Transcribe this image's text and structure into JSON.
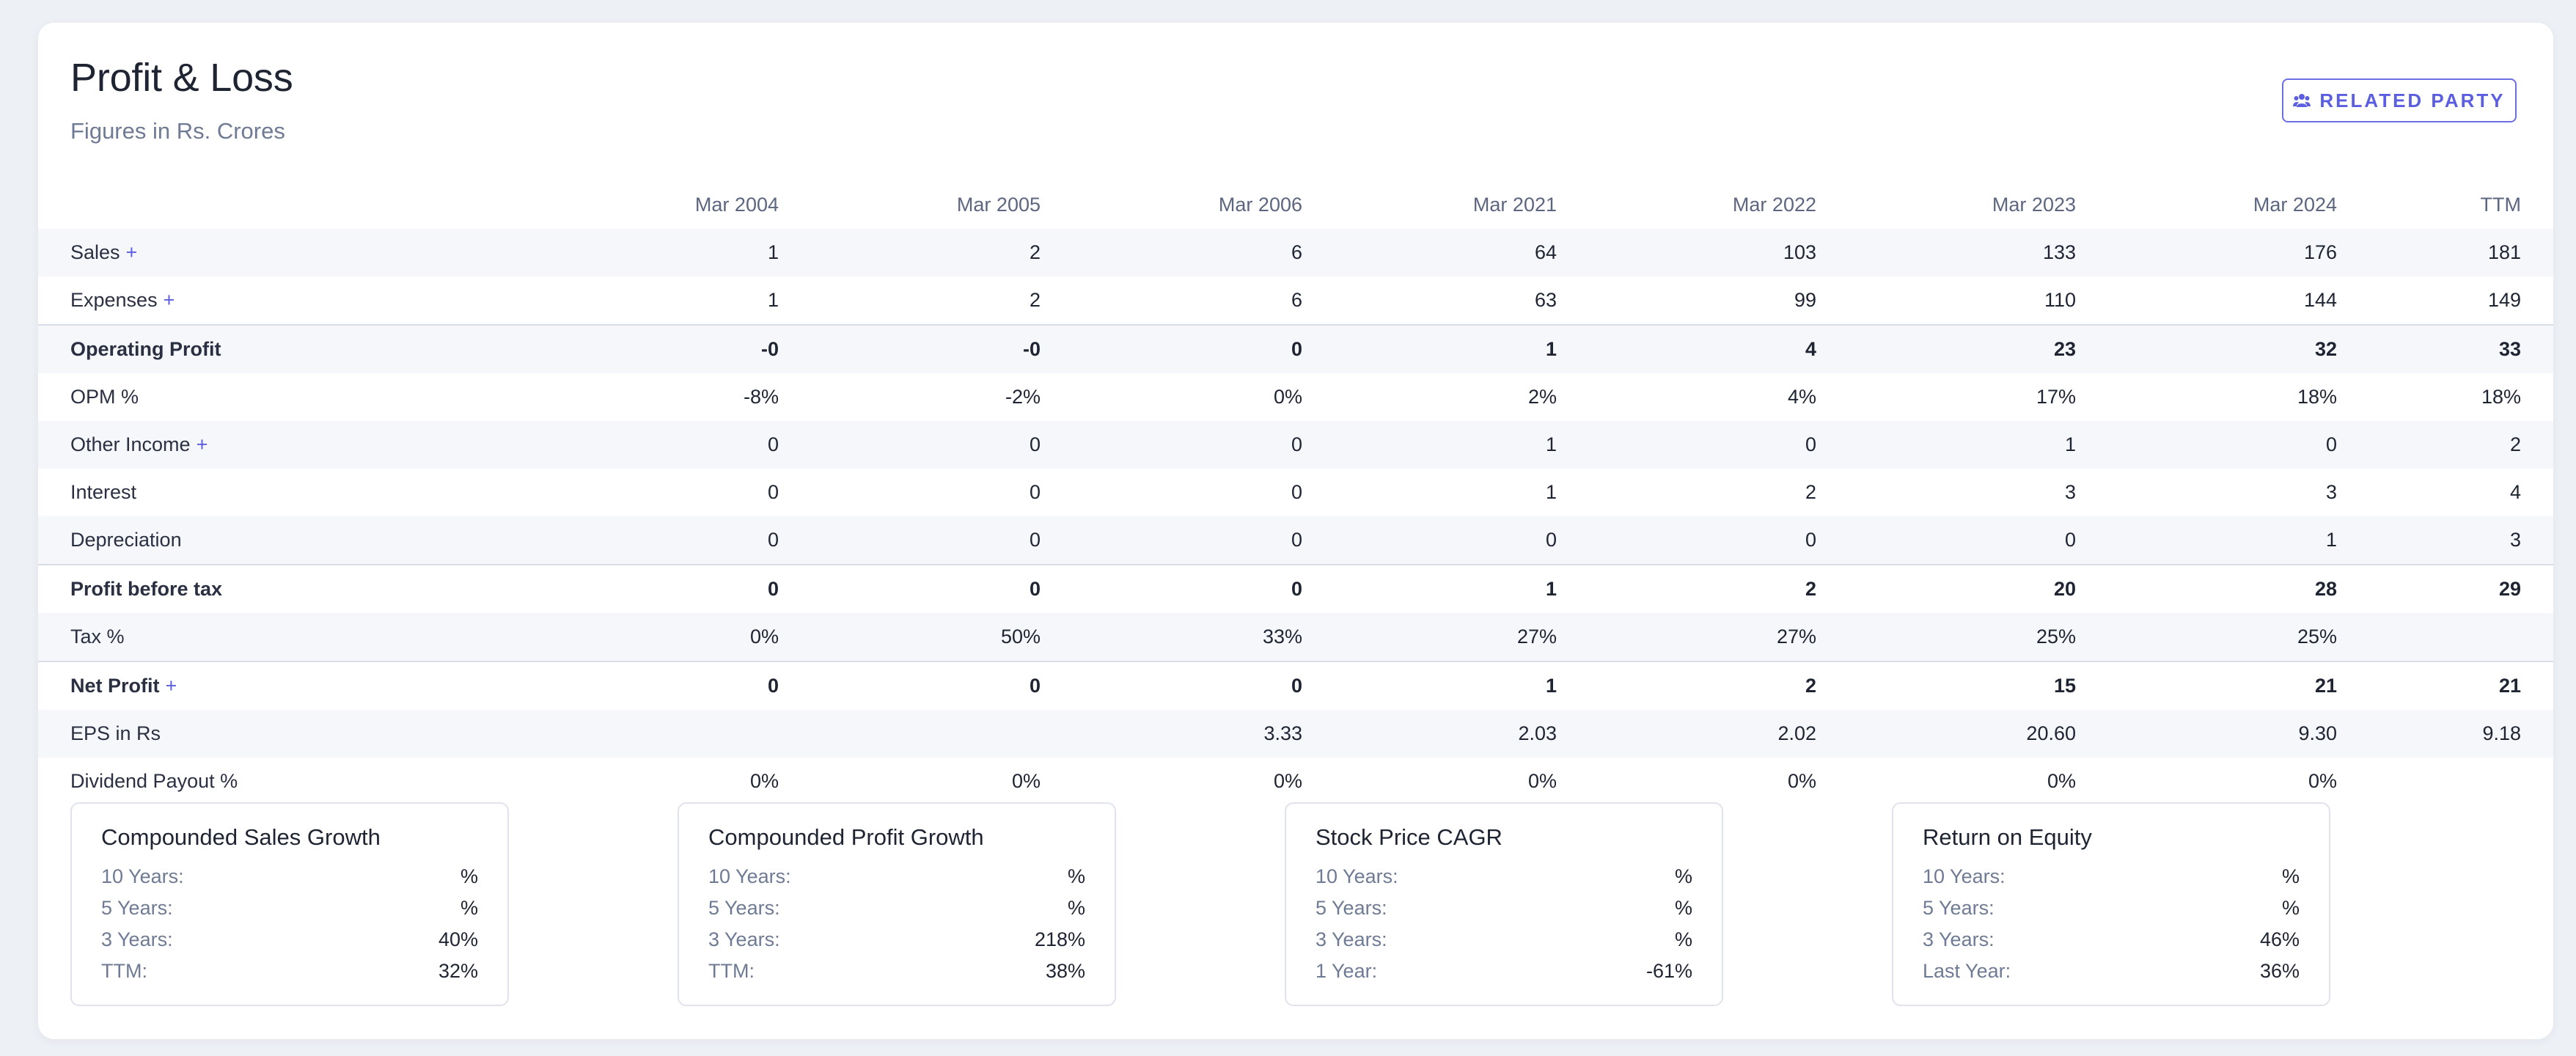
{
  "header": {
    "title": "Profit & Loss",
    "subtitle": "Figures in Rs. Crores",
    "related_party_label": "RELATED PARTY",
    "related_party_icon": "users-icon"
  },
  "colors": {
    "accent": "#5b5ee0",
    "background": "#edf0f5",
    "row_alt": "#f6f7fb"
  },
  "table": {
    "columns": [
      "Mar 2004",
      "Mar 2005",
      "Mar 2006",
      "Mar 2021",
      "Mar 2022",
      "Mar 2023",
      "Mar 2024",
      "TTM"
    ],
    "rows": [
      {
        "label": "Sales",
        "expandable": true,
        "values": [
          "1",
          "2",
          "6",
          "64",
          "103",
          "133",
          "176",
          "181"
        ]
      },
      {
        "label": "Expenses",
        "expandable": true,
        "values": [
          "1",
          "2",
          "6",
          "63",
          "99",
          "110",
          "144",
          "149"
        ]
      },
      {
        "label": "Operating Profit",
        "expandable": false,
        "values": [
          "-0",
          "-0",
          "0",
          "1",
          "4",
          "23",
          "32",
          "33"
        ]
      },
      {
        "label": "OPM %",
        "expandable": false,
        "values": [
          "-8%",
          "-2%",
          "0%",
          "2%",
          "4%",
          "17%",
          "18%",
          "18%"
        ]
      },
      {
        "label": "Other Income",
        "expandable": true,
        "values": [
          "0",
          "0",
          "0",
          "1",
          "0",
          "1",
          "0",
          "2"
        ]
      },
      {
        "label": "Interest",
        "expandable": false,
        "values": [
          "0",
          "0",
          "0",
          "1",
          "2",
          "3",
          "3",
          "4"
        ]
      },
      {
        "label": "Depreciation",
        "expandable": false,
        "values": [
          "0",
          "0",
          "0",
          "0",
          "0",
          "0",
          "1",
          "3"
        ]
      },
      {
        "label": "Profit before tax",
        "expandable": false,
        "values": [
          "0",
          "0",
          "0",
          "1",
          "2",
          "20",
          "28",
          "29"
        ]
      },
      {
        "label": "Tax %",
        "expandable": false,
        "values": [
          "0%",
          "50%",
          "33%",
          "27%",
          "27%",
          "25%",
          "25%",
          ""
        ]
      },
      {
        "label": "Net Profit",
        "expandable": true,
        "values": [
          "0",
          "0",
          "0",
          "1",
          "2",
          "15",
          "21",
          "21"
        ]
      },
      {
        "label": "EPS in Rs",
        "expandable": false,
        "values": [
          "",
          "",
          "3.33",
          "2.03",
          "2.02",
          "20.60",
          "9.30",
          "9.18"
        ]
      },
      {
        "label": "Dividend Payout %",
        "expandable": false,
        "values": [
          "0%",
          "0%",
          "0%",
          "0%",
          "0%",
          "0%",
          "0%",
          ""
        ]
      }
    ]
  },
  "growth_boxes": [
    {
      "title": "Compounded Sales Growth",
      "rows": [
        {
          "label": "10 Years:",
          "value": "%"
        },
        {
          "label": "5 Years:",
          "value": "%"
        },
        {
          "label": "3 Years:",
          "value": "40%"
        },
        {
          "label": "TTM:",
          "value": "32%"
        }
      ]
    },
    {
      "title": "Compounded Profit Growth",
      "rows": [
        {
          "label": "10 Years:",
          "value": "%"
        },
        {
          "label": "5 Years:",
          "value": "%"
        },
        {
          "label": "3 Years:",
          "value": "218%"
        },
        {
          "label": "TTM:",
          "value": "38%"
        }
      ]
    },
    {
      "title": "Stock Price CAGR",
      "rows": [
        {
          "label": "10 Years:",
          "value": "%"
        },
        {
          "label": "5 Years:",
          "value": "%"
        },
        {
          "label": "3 Years:",
          "value": "%"
        },
        {
          "label": "1 Year:",
          "value": "-61%"
        }
      ]
    },
    {
      "title": "Return on Equity",
      "rows": [
        {
          "label": "10 Years:",
          "value": "%"
        },
        {
          "label": "5 Years:",
          "value": "%"
        },
        {
          "label": "3 Years:",
          "value": "46%"
        },
        {
          "label": "Last Year:",
          "value": "36%"
        }
      ]
    }
  ]
}
